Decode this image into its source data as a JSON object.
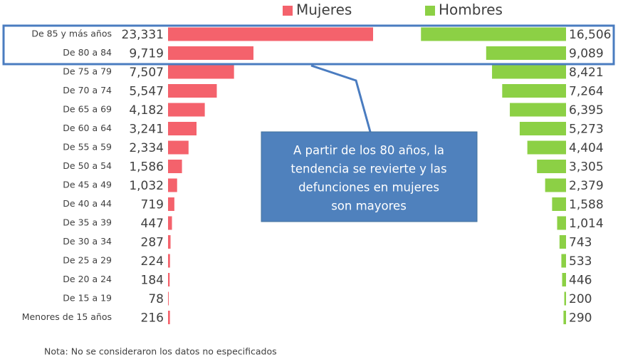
{
  "chart_data": {
    "type": "butterfly-bar",
    "categories": [
      "De 85 y más años",
      "De 80 a 84",
      "De 75 a 79",
      "De 70 a 74",
      "De 65 a 69",
      "De 60 a 64",
      "De 55 a 59",
      "De 50 a 54",
      "De 45 a 49",
      "De 40 a 44",
      "De 35 a 39",
      "De 30 a 34",
      "De 25 a 29",
      "De 20 a 24",
      "De 15 a 19",
      "Menores de 15 años"
    ],
    "series": [
      {
        "name": "Mujeres",
        "color": "#f4626c",
        "values": [
          23331,
          9719,
          7507,
          5547,
          4182,
          3241,
          2334,
          1586,
          1032,
          719,
          447,
          287,
          224,
          184,
          78,
          216
        ],
        "value_labels": [
          "23,331",
          "9,719",
          "7,507",
          "5,547",
          "4,182",
          "3,241",
          "2,334",
          "1,586",
          "1,032",
          "719",
          "447",
          "287",
          "224",
          "184",
          "78",
          "216"
        ]
      },
      {
        "name": "Hombres",
        "color": "#8cd045",
        "values": [
          16506,
          9089,
          8421,
          7264,
          6395,
          5273,
          4404,
          3305,
          2379,
          1588,
          1014,
          743,
          533,
          446,
          200,
          290
        ],
        "value_labels": [
          "16,506",
          "9,089",
          "8,421",
          "7,264",
          "6,395",
          "5,273",
          "4,404",
          "3,305",
          "2,379",
          "1,588",
          "1,014",
          "743",
          "533",
          "446",
          "200",
          "290"
        ]
      }
    ],
    "annotation": [
      "A partir de los 80 años, la",
      "tendencia se revierte y las",
      "defunciones en mujeres",
      "son mayores"
    ],
    "note": "Nota: No se consideraron los datos no especificados"
  }
}
